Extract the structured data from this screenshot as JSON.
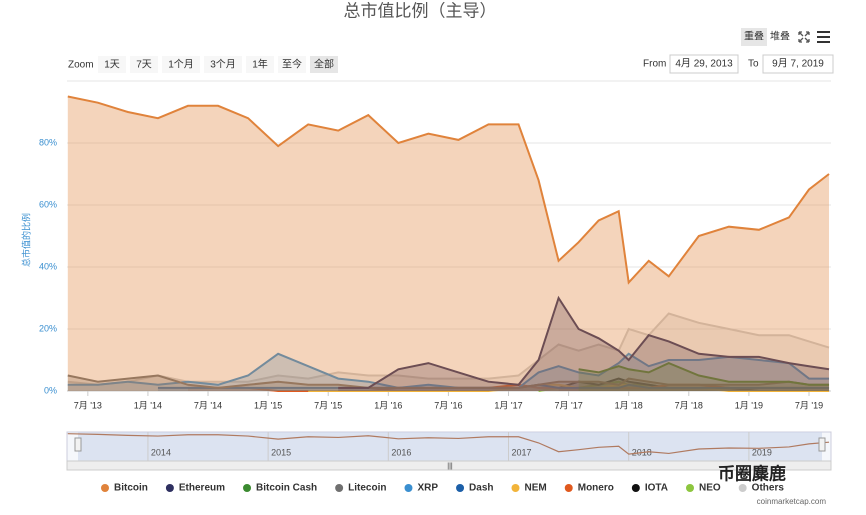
{
  "chart_data": {
    "type": "area",
    "title": "总市值比例（主导）",
    "y_label": "总市值的比例",
    "view_buttons": [
      "重叠",
      "堆叠"
    ],
    "zoom_label": "Zoom",
    "zoom_buttons": [
      "1天",
      "7天",
      "1个月",
      "3个月",
      "1年",
      "至今",
      "全部"
    ],
    "from_label": "From",
    "from_value": "4月 29, 2013",
    "to_label": "To",
    "to_value": "9月 7, 2019",
    "watermark": "币圈麋鹿",
    "source": "coinmarketcap.com",
    "xlim": [
      "2013-04-29",
      "2019-09-07"
    ],
    "ylim": [
      0,
      100
    ],
    "grid": true,
    "yticks": [
      {
        "value": 0,
        "label": "0%"
      },
      {
        "value": 20,
        "label": "20%"
      },
      {
        "value": 40,
        "label": "40%"
      },
      {
        "value": 60,
        "label": "60%"
      },
      {
        "value": 80,
        "label": "80%"
      }
    ],
    "xticks": [
      {
        "value": "2013-07",
        "label": "7月 '13"
      },
      {
        "value": "2014-01",
        "label": "1月 '14"
      },
      {
        "value": "2014-07",
        "label": "7月 '14"
      },
      {
        "value": "2015-01",
        "label": "1月 '15"
      },
      {
        "value": "2015-07",
        "label": "7月 '15"
      },
      {
        "value": "2016-01",
        "label": "1月 '16"
      },
      {
        "value": "2016-07",
        "label": "7月 '16"
      },
      {
        "value": "2017-01",
        "label": "1月 '17"
      },
      {
        "value": "2017-07",
        "label": "7月 '17"
      },
      {
        "value": "2018-01",
        "label": "1月 '18"
      },
      {
        "value": "2018-07",
        "label": "7月 '18"
      },
      {
        "value": "2019-01",
        "label": "1月 '19"
      },
      {
        "value": "2019-07",
        "label": "7月 '19"
      }
    ],
    "navigator_ticks": [
      {
        "value": "2014-01",
        "label": "2014"
      },
      {
        "value": "2015-01",
        "label": "2015"
      },
      {
        "value": "2016-01",
        "label": "2016"
      },
      {
        "value": "2017-01",
        "label": "2017"
      },
      {
        "value": "2018-01",
        "label": "2018"
      },
      {
        "value": "2019-01",
        "label": "2019"
      }
    ],
    "x": [
      "2013-05",
      "2013-08",
      "2013-11",
      "2014-02",
      "2014-05",
      "2014-08",
      "2014-11",
      "2015-02",
      "2015-05",
      "2015-08",
      "2015-11",
      "2016-02",
      "2016-05",
      "2016-08",
      "2016-11",
      "2017-02",
      "2017-04",
      "2017-06",
      "2017-08",
      "2017-10",
      "2017-12",
      "2018-01",
      "2018-03",
      "2018-05",
      "2018-08",
      "2018-11",
      "2019-02",
      "2019-05",
      "2019-07",
      "2019-09"
    ],
    "series": [
      {
        "name": "Bitcoin",
        "color": "#e0833b",
        "values": [
          95,
          93,
          90,
          88,
          92,
          92,
          88,
          79,
          86,
          84,
          89,
          80,
          83,
          81,
          86,
          86,
          68,
          42,
          48,
          55,
          58,
          35,
          42,
          37,
          50,
          53,
          52,
          56,
          65,
          70
        ]
      },
      {
        "name": "Ethereum",
        "color": "#2e3060",
        "values": [
          null,
          null,
          null,
          null,
          null,
          null,
          null,
          null,
          null,
          1,
          1,
          7,
          9,
          6,
          3,
          2,
          10,
          30,
          20,
          17,
          13,
          10,
          18,
          16,
          12,
          11,
          11,
          9,
          8,
          7
        ]
      },
      {
        "name": "Bitcoin Cash",
        "color": "#3b8a30",
        "values": [
          null,
          null,
          null,
          null,
          null,
          null,
          null,
          null,
          null,
          null,
          null,
          null,
          null,
          null,
          null,
          null,
          null,
          null,
          7,
          6,
          8,
          7,
          6,
          9,
          5,
          3,
          3,
          3,
          2,
          2
        ]
      },
      {
        "name": "Litecoin",
        "color": "#707070",
        "values": [
          5,
          3,
          4,
          5,
          2,
          1,
          2,
          3,
          2,
          2,
          1,
          1,
          1,
          1,
          1,
          1,
          2,
          3,
          3,
          3,
          2,
          4,
          3,
          2,
          2,
          2,
          2,
          3,
          2,
          2
        ]
      },
      {
        "name": "XRP",
        "color": "#3a8fd0",
        "values": [
          2,
          2,
          3,
          2,
          3,
          2,
          5,
          12,
          8,
          4,
          3,
          1,
          2,
          1,
          1,
          1,
          6,
          8,
          6,
          5,
          9,
          12,
          8,
          10,
          10,
          11,
          10,
          9,
          4,
          4
        ]
      },
      {
        "name": "Dash",
        "color": "#1c5fa8",
        "values": [
          null,
          null,
          null,
          1,
          1,
          1,
          1,
          1,
          1,
          1,
          1,
          1,
          1,
          1,
          1,
          1,
          2,
          1,
          1,
          1,
          1,
          2,
          1,
          1,
          1,
          1,
          1,
          1,
          1,
          1
        ]
      },
      {
        "name": "NEM",
        "color": "#f2b43a",
        "values": [
          null,
          null,
          null,
          null,
          null,
          null,
          null,
          null,
          0,
          0,
          0,
          0,
          0,
          0,
          0,
          1,
          2,
          2,
          1,
          1,
          2,
          2,
          1,
          1,
          1,
          0,
          0,
          0,
          0,
          0
        ]
      },
      {
        "name": "Monero",
        "color": "#e0591e",
        "values": [
          null,
          null,
          null,
          null,
          1,
          1,
          1,
          0,
          0,
          0,
          0,
          1,
          1,
          1,
          1,
          2,
          1,
          1,
          1,
          1,
          1,
          1,
          1,
          2,
          2,
          1,
          1,
          1,
          1,
          1
        ]
      },
      {
        "name": "IOTA",
        "color": "#111111",
        "values": [
          null,
          null,
          null,
          null,
          null,
          null,
          null,
          null,
          null,
          null,
          null,
          null,
          null,
          null,
          null,
          null,
          null,
          1,
          3,
          2,
          4,
          3,
          2,
          1,
          1,
          1,
          0,
          0,
          0,
          0
        ]
      },
      {
        "name": "NEO",
        "color": "#8dc63f",
        "values": [
          null,
          null,
          null,
          null,
          null,
          null,
          null,
          null,
          null,
          null,
          null,
          null,
          null,
          null,
          null,
          null,
          0,
          1,
          1,
          2,
          3,
          2,
          2,
          1,
          1,
          1,
          0,
          0,
          0,
          0
        ]
      },
      {
        "name": "Others",
        "color": "#cccccc",
        "values": [
          3,
          2,
          3,
          5,
          3,
          3,
          3,
          5,
          4,
          6,
          5,
          5,
          4,
          4,
          4,
          5,
          10,
          15,
          13,
          15,
          13,
          20,
          18,
          25,
          22,
          20,
          18,
          18,
          16,
          14
        ]
      }
    ]
  }
}
